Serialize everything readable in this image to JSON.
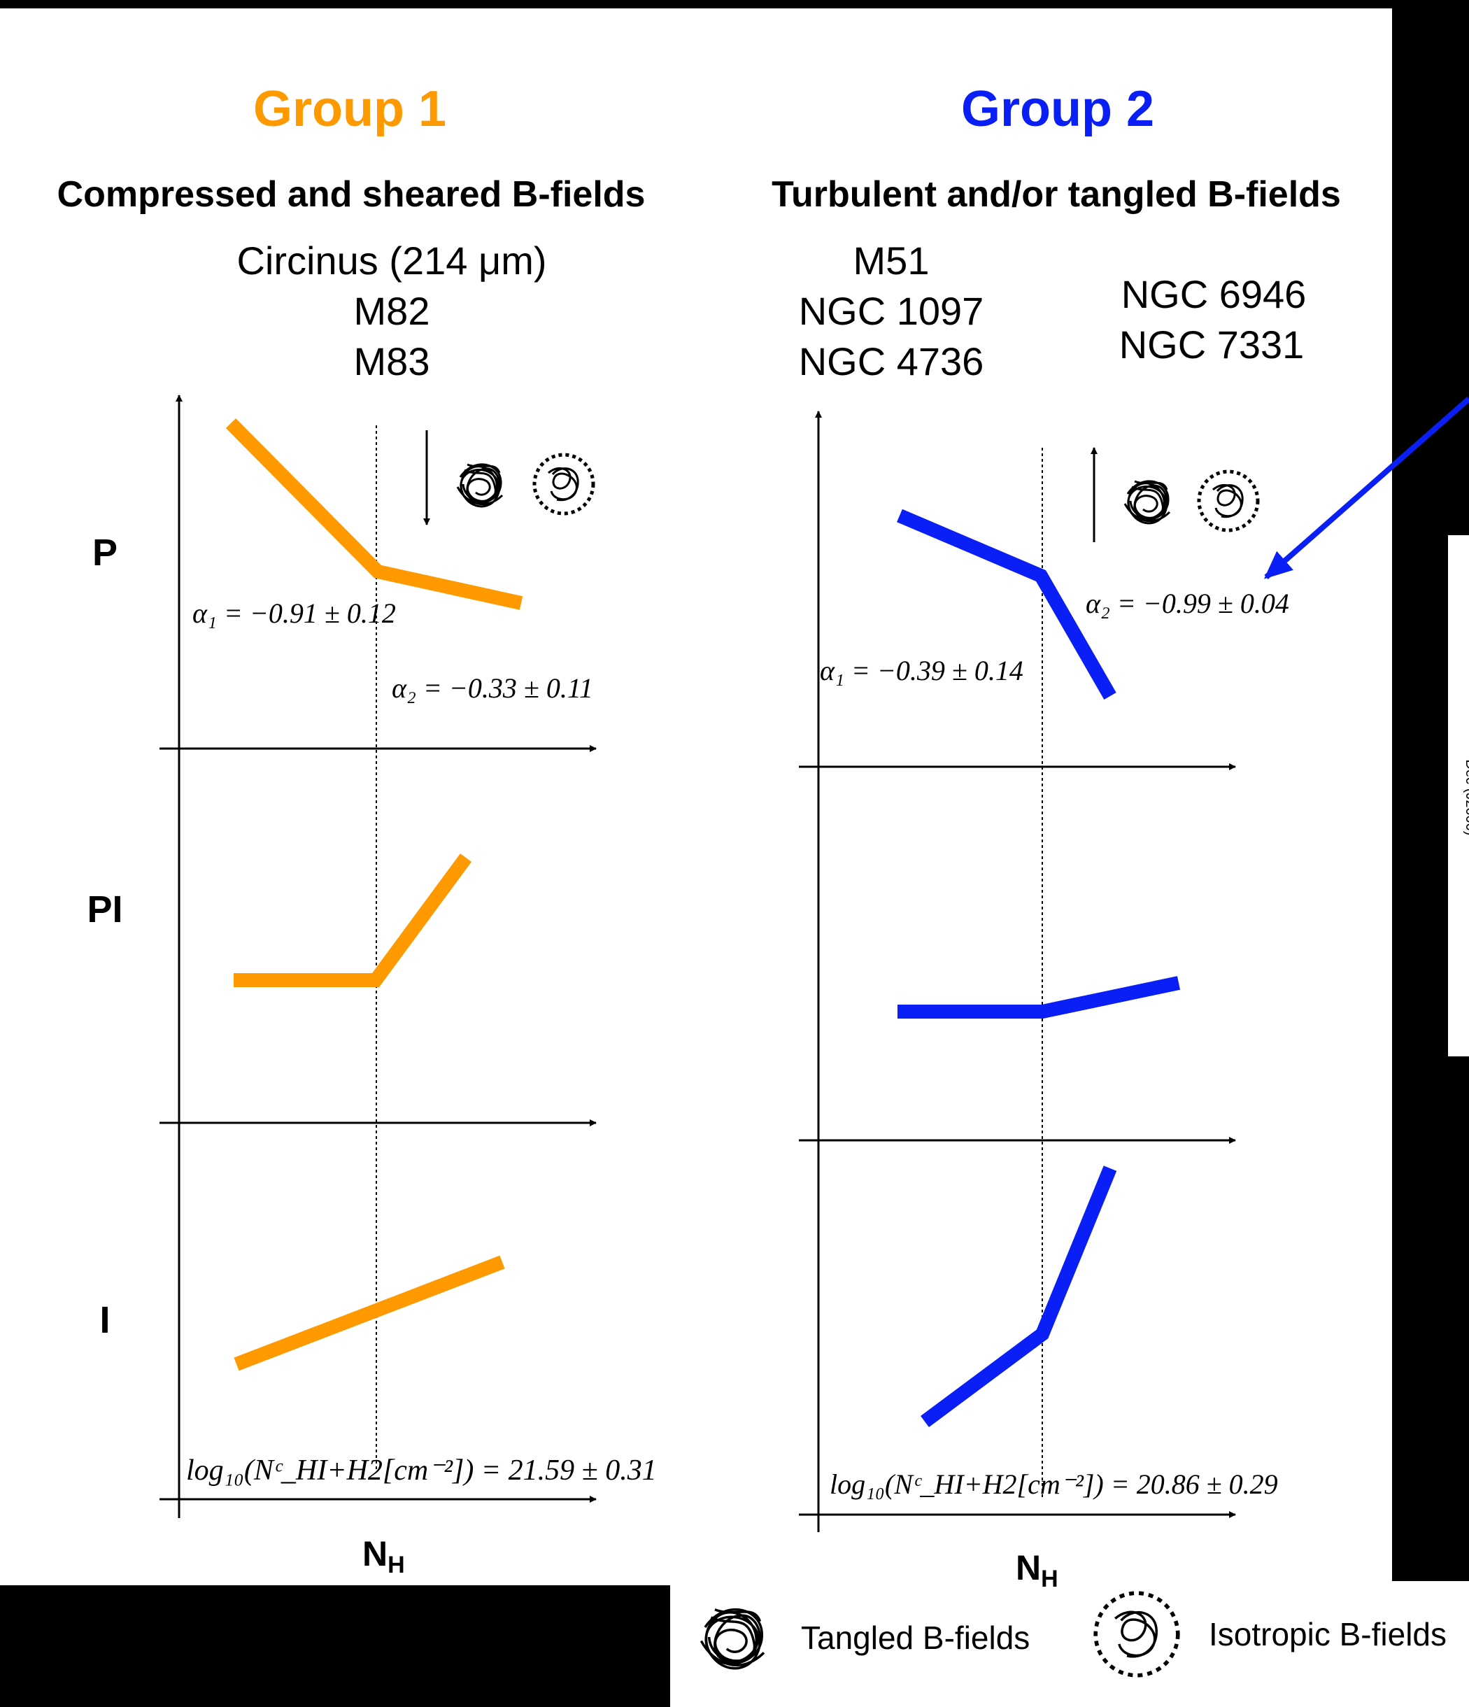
{
  "colors": {
    "group1": "#ff9900",
    "group2": "#0a1ff5",
    "axis": "#000000",
    "background": "#ffffff"
  },
  "group1": {
    "title": "Group 1",
    "subtitle": "Compressed and sheared B-fields",
    "galaxies": [
      "Circinus (214 μm)",
      "M82",
      "M83"
    ],
    "alpha1": "α₁ = −0.91 ± 0.12",
    "alpha2": "α₂ = −0.33 ± 0.11",
    "break_label": "log₁₀(Nᶜ_HI+H2[cm⁻²]) = 21.59 ± 0.31",
    "xlabel": "N",
    "xlabel_sub": "H",
    "arrow_direction": "down"
  },
  "group2": {
    "title": "Group 2",
    "subtitle": "Turbulent and/or tangled B-fields",
    "galaxies_a": [
      "M51",
      "NGC 1097",
      "NGC 4736"
    ],
    "galaxies_b": [
      "NGC 6946",
      "NGC 7331"
    ],
    "alpha1": "α₁ = −0.39 ± 0.14",
    "alpha2": "α₂ = −0.99 ± 0.04",
    "break_label": "log₁₀(Nᶜ_HI+H2[cm⁻²]) = 20.86 ± 0.29",
    "xlabel": "N",
    "xlabel_sub": "H",
    "arrow_direction": "up"
  },
  "row_labels": [
    "P",
    "PI",
    "I"
  ],
  "legend": {
    "tangled": "Tangled B-fields",
    "isotropic": "Isotropic B-fields"
  },
  "side_panel": {
    "axis_text": "Dec (J2000)"
  }
}
